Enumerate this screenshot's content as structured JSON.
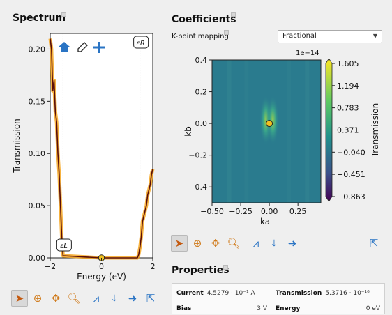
{
  "spectrum": {
    "title": "Spectrum",
    "xlabel": "Energy (eV)",
    "ylabel": "Transmission",
    "x_ticks": [
      "−2",
      "0",
      "2"
    ],
    "y_ticks": [
      "0.00",
      "0.05",
      "0.10",
      "0.15",
      "0.20"
    ],
    "marker_left_label": "εL",
    "marker_right_label": "εR",
    "toolbar_icons": [
      "home-icon",
      "pencil-icon",
      "plus-icon"
    ]
  },
  "coefficients": {
    "title": "Coefficients",
    "kpoint_label": "K-point mapping",
    "kpoint_value": "Fractional",
    "xlabel": "ka",
    "ylabel": "kb",
    "x_ticks": [
      "−0.50",
      "−0.25",
      "0.00",
      "0.25"
    ],
    "y_ticks": [
      "0.4",
      "0.2",
      "0.0",
      "−0.2",
      "−0.4"
    ],
    "colorbar_label": "Transmission",
    "colorbar_exponent": "1e−14",
    "colorbar_ticks": [
      "1.605",
      "1.194",
      "0.783",
      "0.371",
      "−0.040",
      "−0.451",
      "−0.863"
    ]
  },
  "properties": {
    "title": "Properties",
    "current_label": "Current",
    "current_value": "4.5279 · 10⁻¹ A",
    "transmission_label": "Transmission",
    "transmission_value": "5.3716 · 10⁻¹⁶",
    "bias_label": "Bias",
    "bias_value": "3 V",
    "energy_label": "Energy",
    "energy_value": "0 eV"
  },
  "colors": {
    "curve": "#5a0f0a",
    "curve_glow": "#f4a41e",
    "marker_fill": "#f0c020",
    "heatmap_base": "#2a7b8e",
    "accent": "#2a74c4"
  },
  "chart_data": [
    {
      "type": "line",
      "title": "Spectrum",
      "xlabel": "Energy (eV)",
      "ylabel": "Transmission",
      "xlim": [
        -2,
        2
      ],
      "ylim": [
        0,
        0.215
      ],
      "x": [
        -2.0,
        -1.95,
        -1.9,
        -1.85,
        -1.8,
        -1.75,
        -1.7,
        -1.65,
        -1.6,
        -1.55,
        -1.5,
        0.0,
        1.4,
        1.45,
        1.5,
        1.55,
        1.6,
        1.65,
        1.7,
        1.75,
        1.8,
        1.85,
        1.9,
        1.95,
        2.0
      ],
      "y": [
        0.21,
        0.2,
        0.16,
        0.17,
        0.14,
        0.13,
        0.1,
        0.08,
        0.05,
        0.02,
        0.002,
        0.0,
        0.0,
        0.003,
        0.01,
        0.02,
        0.035,
        0.04,
        0.045,
        0.05,
        0.06,
        0.065,
        0.07,
        0.08,
        0.085
      ],
      "marker_point": [
        0,
        0
      ],
      "vlines": [
        -1.5,
        1.5
      ]
    },
    {
      "type": "heatmap",
      "title": "Coefficients",
      "xlabel": "ka",
      "ylabel": "kb",
      "xlim": [
        -0.5,
        0.45
      ],
      "ylim": [
        -0.5,
        0.4
      ],
      "colorbar_range": [
        -0.863,
        1.605
      ],
      "colorbar_scale": "1e-14",
      "marker_point": [
        0,
        0
      ]
    }
  ]
}
